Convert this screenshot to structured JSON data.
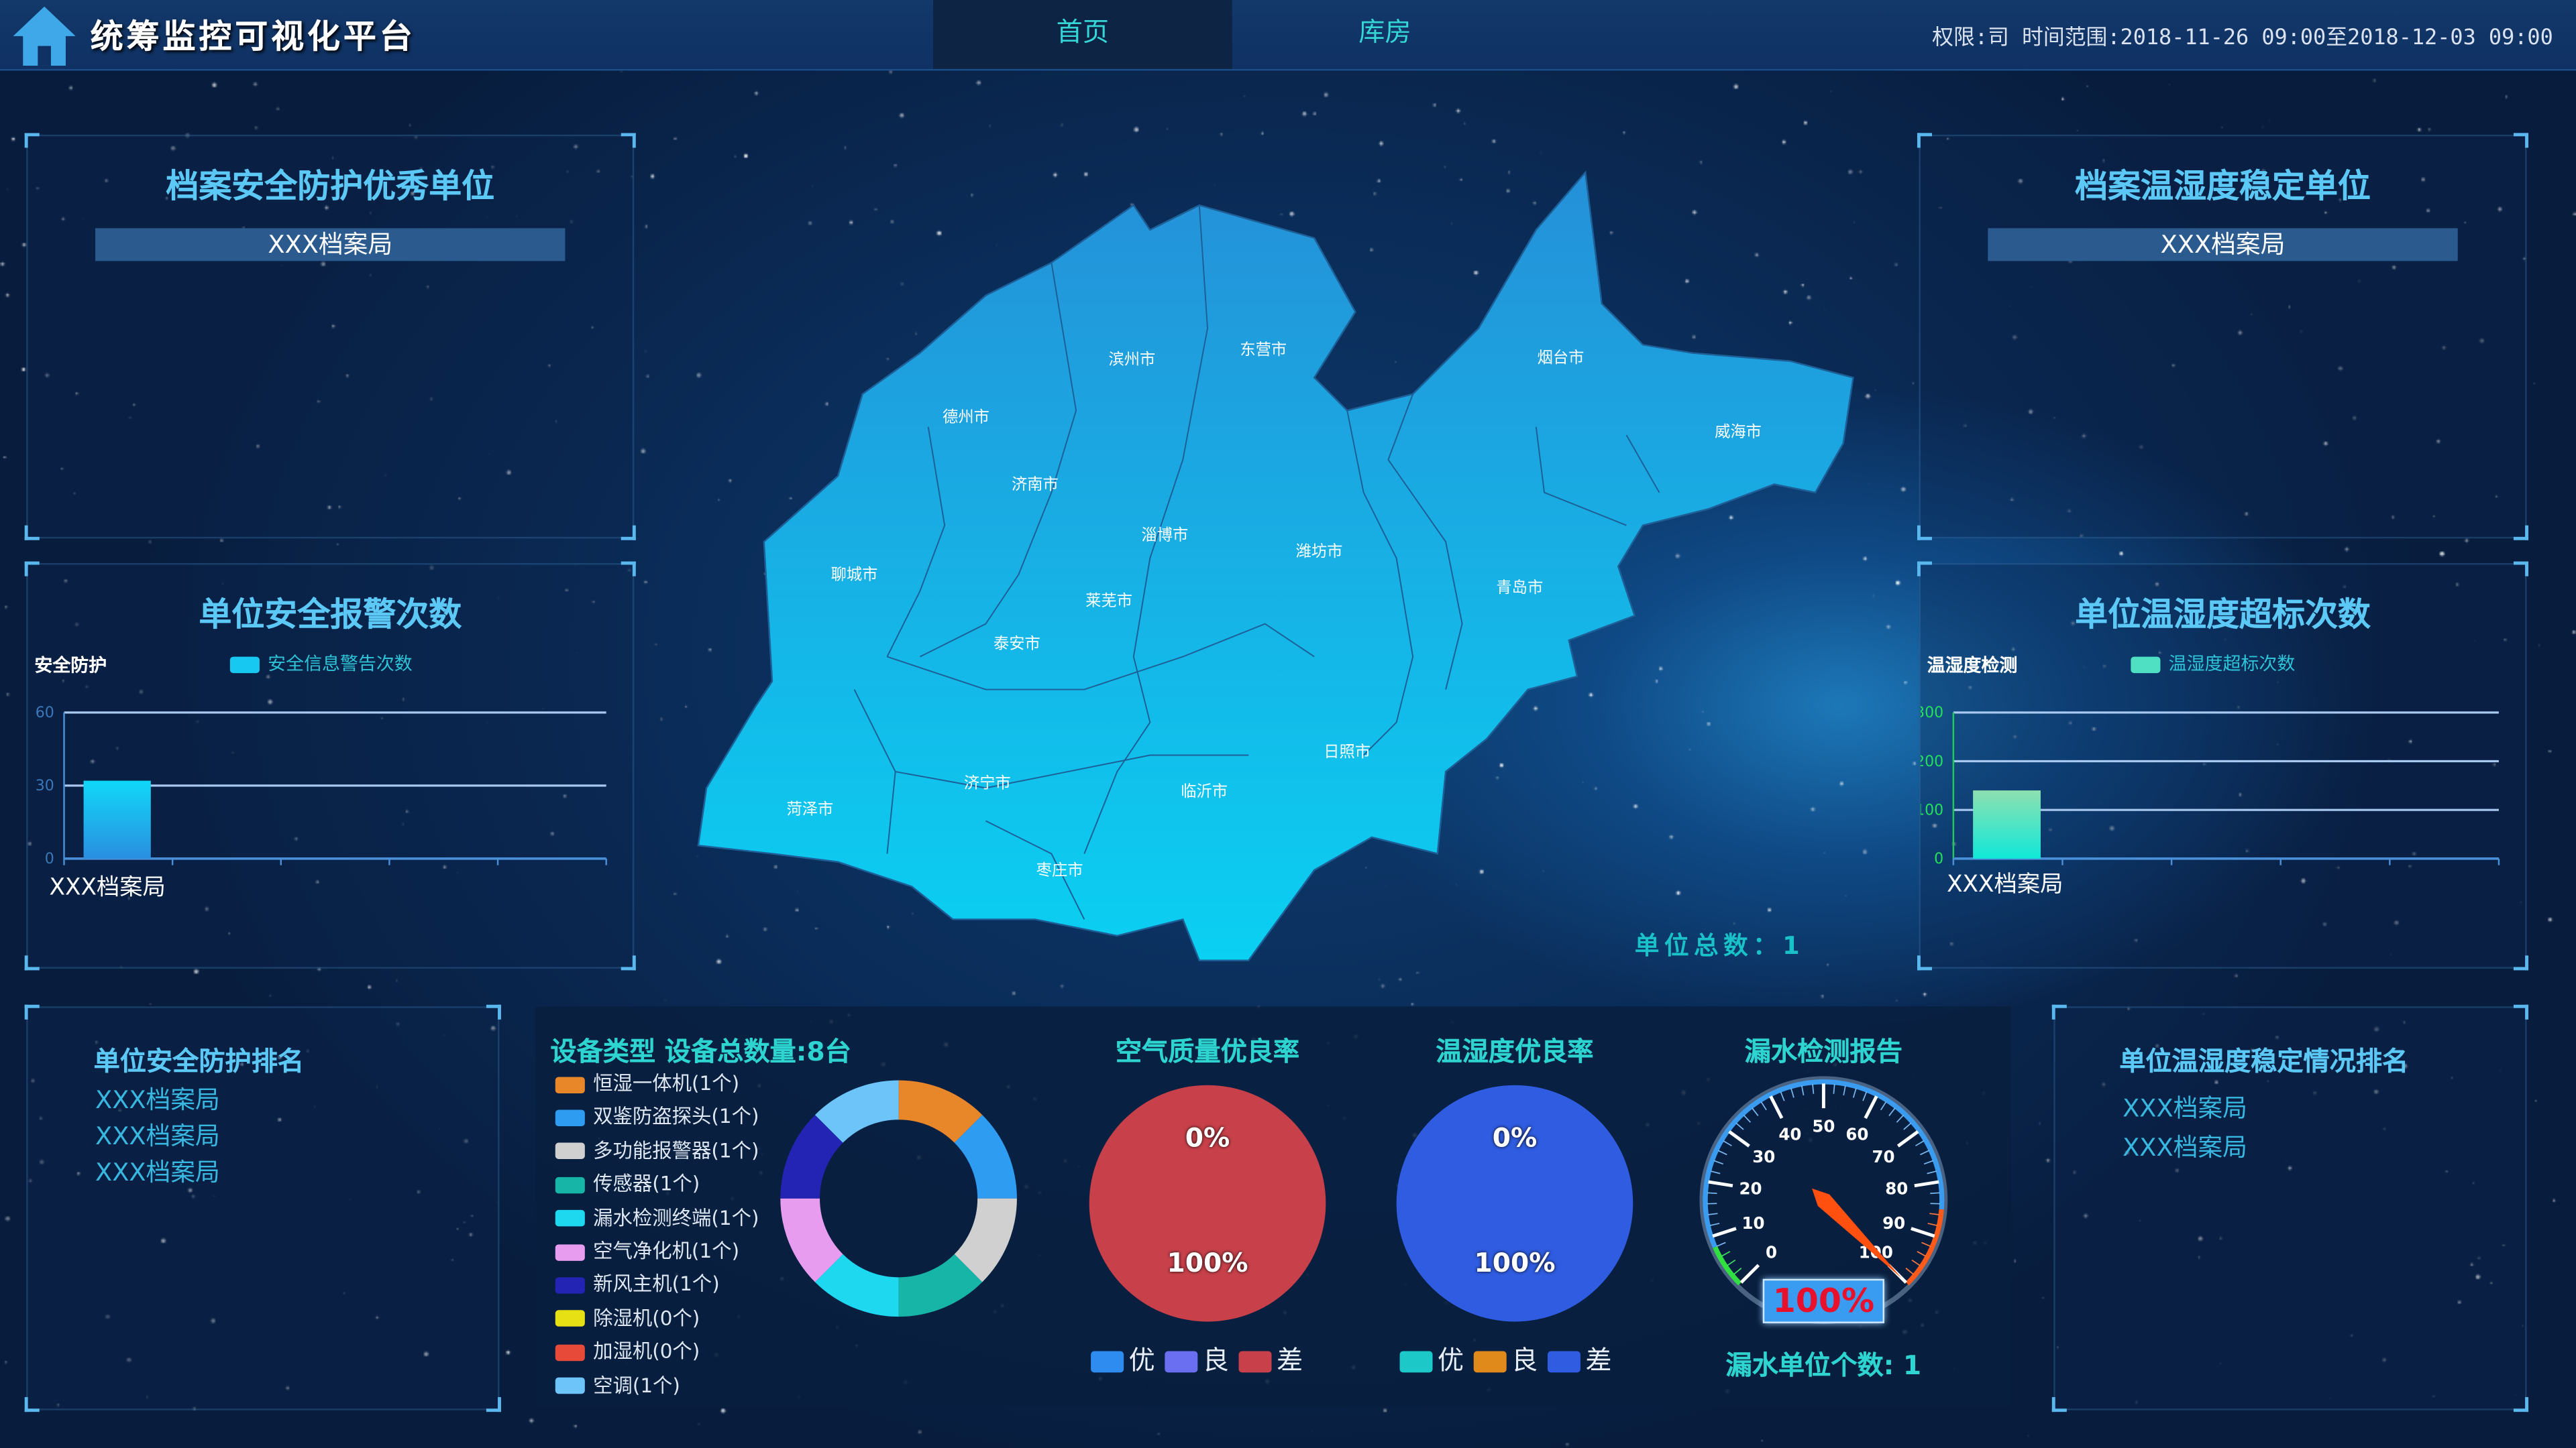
{
  "header": {
    "title": "统筹监控可视化平台",
    "tabs": [
      {
        "label": "首页",
        "active": true
      },
      {
        "label": "库房",
        "active": false
      }
    ],
    "info": "权限:司  时间范围:2018-11-26 09:00至2018-12-03 09:00",
    "home_icon": "house-icon"
  },
  "top_left": {
    "title": "档案安全防护优秀单位",
    "item": "XXX档案局"
  },
  "top_right": {
    "title": "档案温湿度稳定单位",
    "item": "XXX档案局"
  },
  "alarm_panel": {
    "title": "单位安全报警次数",
    "series_label": "安全防护"
  },
  "humidity_panel": {
    "title": "单位温湿度超标次数",
    "series_label": "温湿度检测"
  },
  "map": {
    "total_label": "单位总数：1",
    "cities": [
      "滨州市",
      "东营市",
      "烟台市",
      "威海市",
      "德州市",
      "济南市",
      "淄博市",
      "潍坊市",
      "青岛市",
      "聊城市",
      "莱芜市",
      "泰安市",
      "日照市",
      "济宁市",
      "临沂市",
      "菏泽市",
      "枣庄市"
    ],
    "fill_color": "#1aa8e0"
  },
  "rank_left": {
    "title": "单位安全防护排名",
    "items": [
      "XXX档案局",
      "XXX档案局",
      "XXX档案局"
    ]
  },
  "rank_right": {
    "title": "单位温湿度稳定情况排名",
    "items": [
      "XXX档案局",
      "XXX档案局"
    ]
  },
  "devices": {
    "title": "设备类型 设备总数量:8台"
  },
  "air": {
    "title": "空气质量优良率"
  },
  "hum": {
    "title": "温湿度优良率"
  },
  "leak": {
    "title": "漏水检测报告",
    "value_text": "100%",
    "count_text": "漏水单位个数: 1"
  },
  "chart_data": [
    {
      "type": "bar",
      "id": "alarm",
      "legend": "安全信息警告次数",
      "categories": [
        "XXX档案局"
      ],
      "values": [
        32
      ],
      "ylim": [
        0,
        60
      ],
      "yticks": [
        0,
        30,
        60
      ],
      "grid": true,
      "legend_placement": "top",
      "color": "#17c9f0"
    },
    {
      "type": "bar",
      "id": "humidity",
      "legend": "温湿度超标次数",
      "categories": [
        "XXX档案局"
      ],
      "values": [
        140
      ],
      "ylim": [
        0,
        300
      ],
      "yticks": [
        0,
        100,
        200,
        300
      ],
      "grid": true,
      "legend_placement": "top",
      "color": "#4fe0c4"
    },
    {
      "type": "pie",
      "id": "devices",
      "donut": true,
      "legend_placement": "left",
      "slices": [
        {
          "label": "恒湿一体机(1个)",
          "value": 1,
          "color": "#e8862a"
        },
        {
          "label": "双鉴防盗探头(1个)",
          "value": 1,
          "color": "#2e9cf0"
        },
        {
          "label": "多功能报警器(1个)",
          "value": 1,
          "color": "#d0d0d0"
        },
        {
          "label": "传感器(1个)",
          "value": 1,
          "color": "#17b4a8"
        },
        {
          "label": "漏水检测终端(1个)",
          "value": 1,
          "color": "#1ed8f0"
        },
        {
          "label": "空气净化机(1个)",
          "value": 1,
          "color": "#e79cf0"
        },
        {
          "label": "新风主机(1个)",
          "value": 1,
          "color": "#2424b4"
        },
        {
          "label": "除湿机(0个)",
          "value": 0,
          "color": "#e6e014"
        },
        {
          "label": "加湿机(0个)",
          "value": 0,
          "color": "#e84a3a"
        },
        {
          "label": "空调(1个)",
          "value": 1,
          "color": "#6cc4f8"
        }
      ]
    },
    {
      "type": "pie",
      "id": "air",
      "legend_placement": "bottom",
      "labels": [
        "0%",
        "100%"
      ],
      "slices": [
        {
          "label": "优",
          "value": 0,
          "color": "#2e8cf0"
        },
        {
          "label": "良",
          "value": 0,
          "color": "#6a6ef0"
        },
        {
          "label": "差",
          "value": 100,
          "color": "#c8414a"
        }
      ]
    },
    {
      "type": "pie",
      "id": "hum",
      "legend_placement": "bottom",
      "labels": [
        "0%",
        "100%"
      ],
      "slices": [
        {
          "label": "优",
          "value": 0,
          "color": "#1cc8c8"
        },
        {
          "label": "良",
          "value": 0,
          "color": "#e08a1c"
        },
        {
          "label": "差",
          "value": 100,
          "color": "#2f5ce0"
        }
      ]
    },
    {
      "type": "gauge",
      "id": "leak",
      "min": 0,
      "max": 100,
      "value": 100,
      "ticks": [
        0,
        10,
        20,
        30,
        40,
        50,
        60,
        70,
        80,
        90,
        100
      ]
    }
  ]
}
